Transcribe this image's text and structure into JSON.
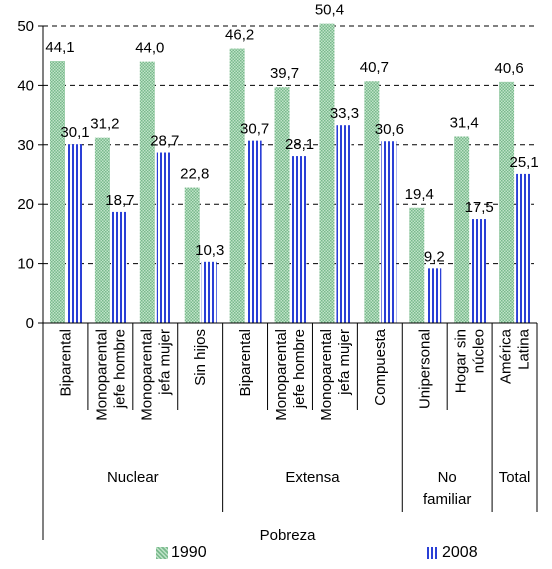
{
  "chart_data": {
    "type": "bar",
    "ylim": [
      0,
      50
    ],
    "yticks": [
      0,
      10,
      20,
      30,
      40,
      50
    ],
    "grid": true,
    "legend_position": "bottom",
    "categories": [
      {
        "lines": [
          "Biparental"
        ]
      },
      {
        "lines": [
          "Monoparental",
          "jefe hombre"
        ]
      },
      {
        "lines": [
          "Monoparental",
          "jefa mujer"
        ]
      },
      {
        "lines": [
          "Sin hijos"
        ]
      },
      {
        "lines": [
          "Biparental"
        ]
      },
      {
        "lines": [
          "Monoparental",
          "jefe hombre"
        ]
      },
      {
        "lines": [
          "Monoparental",
          "jefa mujer"
        ]
      },
      {
        "lines": [
          "Compuesta"
        ]
      },
      {
        "lines": [
          "Unipersonal"
        ]
      },
      {
        "lines": [
          "Hogar sin",
          "núcleo"
        ]
      },
      {
        "lines": [
          "América",
          "Latina"
        ]
      }
    ],
    "groups": [
      {
        "lines": [
          "Nuclear"
        ],
        "start": 0,
        "end": 3
      },
      {
        "lines": [
          "Extensa"
        ],
        "start": 4,
        "end": 7
      },
      {
        "lines": [
          "No",
          "familiar"
        ],
        "start": 8,
        "end": 9
      },
      {
        "lines": [
          "Total"
        ],
        "start": 10,
        "end": 10
      }
    ],
    "supergroup": {
      "label": "Pobreza",
      "start": 0,
      "end": 9
    },
    "series": [
      {
        "name": "1990",
        "color": "#8fc9a0",
        "values": [
          44.1,
          31.2,
          44.0,
          22.8,
          46.2,
          39.7,
          50.4,
          40.7,
          19.4,
          31.4,
          40.6
        ],
        "labels": [
          "44,1",
          "31,2",
          "44,0",
          "22,8",
          "46,2",
          "39,7",
          "50,4",
          "40,7",
          "19,4",
          "31,4",
          "40,6"
        ]
      },
      {
        "name": "2008",
        "color": "#2a3fd6",
        "values": [
          30.1,
          18.7,
          28.7,
          10.3,
          30.7,
          28.1,
          33.3,
          30.6,
          9.2,
          17.5,
          25.1
        ],
        "labels": [
          "30,1",
          "18,7",
          "28,7",
          "10,3",
          "30,7",
          "28,1",
          "33,3",
          "30,6",
          "9,2",
          "17,5",
          "25,1"
        ]
      }
    ]
  }
}
